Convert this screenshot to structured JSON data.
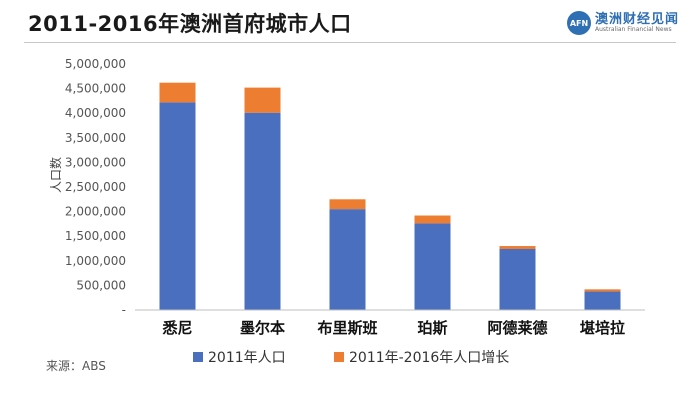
{
  "header": {
    "logo_badge": "AFN",
    "logo_cn": "澳洲财经见闻",
    "logo_en": "Australian Financial News"
  },
  "footer": {
    "source": "来源：ABS"
  },
  "chart_data": {
    "type": "bar",
    "stacked": true,
    "title": "2011-2016年澳洲首府城市人口",
    "ylabel": "人口数",
    "xlabel": "",
    "categories": [
      "悉尼",
      "墨尔本",
      "布里斯班",
      "珀斯",
      "阿德莱德",
      "堪培拉"
    ],
    "series": [
      {
        "name": "2011年人口",
        "color": "#4a6fbf",
        "values": [
          4220000,
          4010000,
          2050000,
          1760000,
          1240000,
          375000
        ]
      },
      {
        "name": "2011年-2016年人口增长",
        "color": "#ed7d31",
        "values": [
          400000,
          510000,
          200000,
          160000,
          60000,
          45000
        ]
      }
    ],
    "ylim": [
      0,
      5000000
    ],
    "yticks": [
      0,
      500000,
      1000000,
      1500000,
      2000000,
      2500000,
      3000000,
      3500000,
      4000000,
      4500000,
      5000000
    ],
    "ytick_labels": [
      "-",
      "500,000",
      "1,000,000",
      "1,500,000",
      "2,000,000",
      "2,500,000",
      "3,000,000",
      "3,500,000",
      "4,000,000",
      "4,500,000",
      "5,000,000"
    ],
    "legend_position": "bottom",
    "grid": false
  }
}
